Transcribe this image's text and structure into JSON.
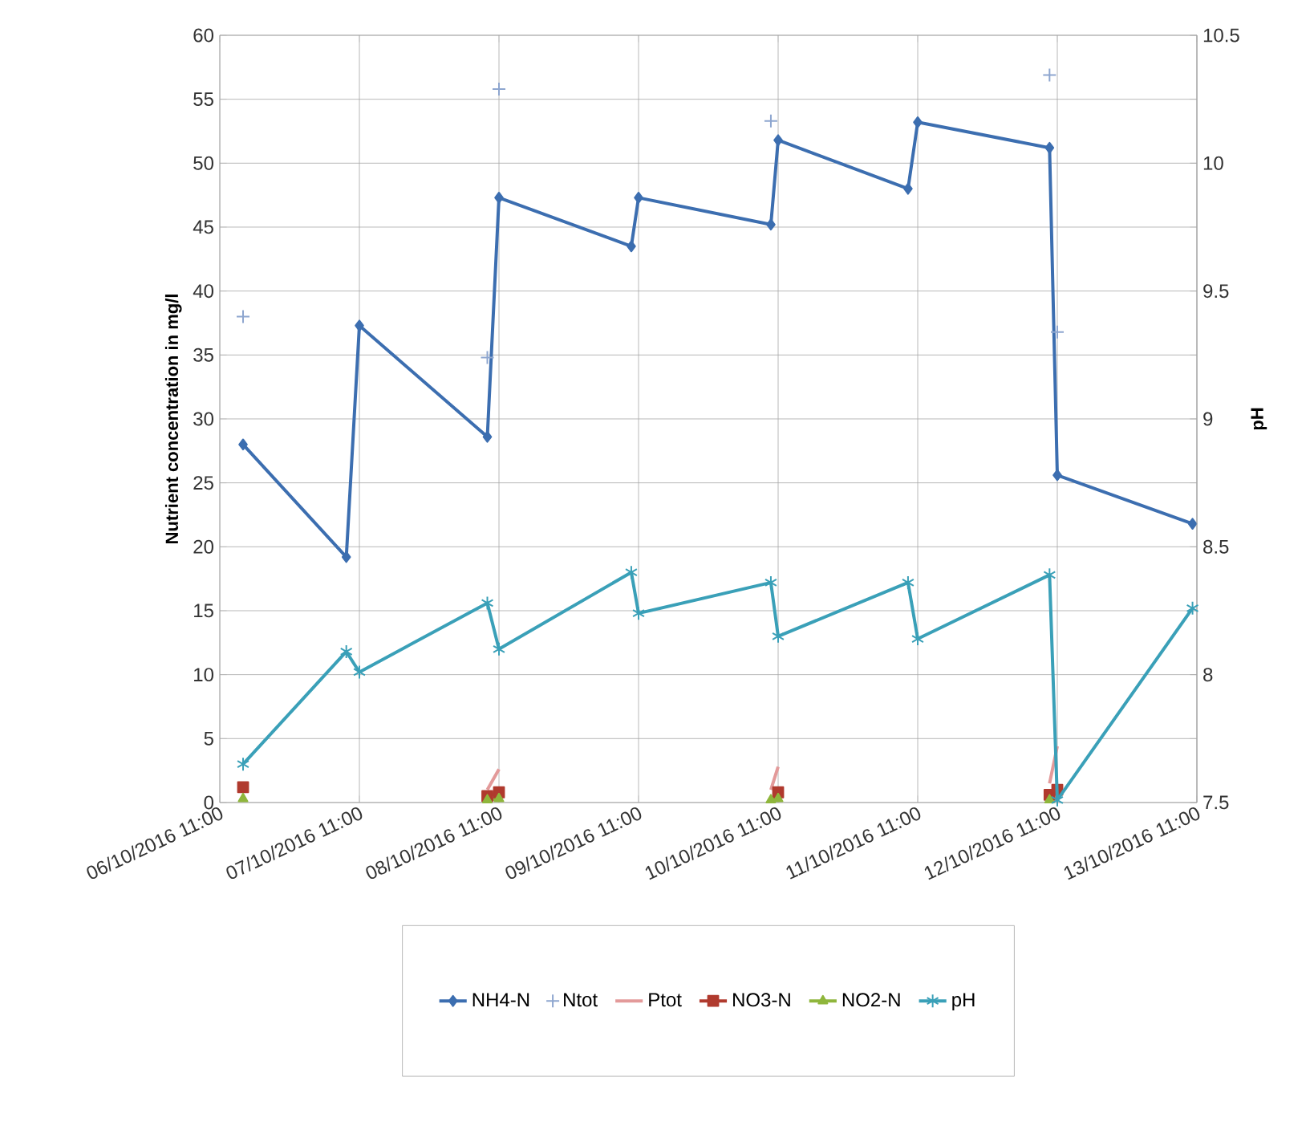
{
  "chart_data": {
    "type": "line",
    "ylabel": "Nutrient concentration in mg/l",
    "y2label": "pH",
    "x": [
      "2016-10-06T15:00",
      "2016-10-07T08:45",
      "2016-10-07T11:00",
      "2016-10-08T09:00",
      "2016-10-08T11:00",
      "2016-10-09T09:45",
      "2016-10-09T11:00",
      "2016-10-10T09:45",
      "2016-10-10T11:00",
      "2016-10-11T09:20",
      "2016-10-11T11:00",
      "2016-10-12T09:40",
      "2016-10-12T11:00",
      "2016-10-13T10:15"
    ],
    "series": [
      {
        "name": "NH4-N",
        "color": "#3c6eb0",
        "marker": "diamond",
        "values": [
          28.0,
          19.2,
          37.3,
          28.6,
          47.3,
          43.5,
          47.3,
          45.2,
          51.8,
          48.0,
          53.2,
          51.2,
          25.6,
          21.8
        ]
      },
      {
        "name": "Ntot",
        "type": "scatter",
        "color": "#8ea6cf",
        "values": [
          38.0,
          null,
          null,
          34.8,
          55.8,
          null,
          null,
          53.3,
          null,
          null,
          null,
          56.9,
          36.8,
          null
        ]
      },
      {
        "name": "Ptot",
        "color": "#e39a9a",
        "marker": "none",
        "values": [
          null,
          null,
          null,
          1.0,
          2.6,
          null,
          null,
          1.0,
          2.8,
          null,
          null,
          1.5,
          4.4,
          null
        ]
      },
      {
        "name": "NO3-N",
        "color": "#b03a2e",
        "marker": "square",
        "values": [
          1.2,
          null,
          null,
          0.5,
          0.8,
          null,
          null,
          null,
          0.8,
          null,
          null,
          0.6,
          1.0,
          null
        ]
      },
      {
        "name": "NO2-N",
        "color": "#8fb63c",
        "marker": "triangle",
        "values": [
          0.3,
          null,
          null,
          0.2,
          0.3,
          null,
          null,
          0.2,
          0.3,
          null,
          null,
          0.2,
          null,
          null
        ]
      },
      {
        "name": "pH",
        "color": "#3aa0b8",
        "marker": "cross",
        "axis": "y2",
        "values": [
          7.65,
          8.09,
          8.01,
          8.28,
          8.1,
          8.4,
          8.24,
          8.36,
          8.15,
          8.36,
          8.14,
          8.39,
          7.51,
          8.26
        ]
      }
    ],
    "xlim": [
      "2016-10-06T11:00",
      "2016-10-13T11:00"
    ],
    "xticks": [
      {
        "value": "2016-10-06T11:00",
        "label": "06/10/2016 11:00"
      },
      {
        "value": "2016-10-07T11:00",
        "label": "07/10/2016 11:00"
      },
      {
        "value": "2016-10-08T11:00",
        "label": "08/10/2016 11:00"
      },
      {
        "value": "2016-10-09T11:00",
        "label": "09/10/2016 11:00"
      },
      {
        "value": "2016-10-10T11:00",
        "label": "10/10/2016 11:00"
      },
      {
        "value": "2016-10-11T11:00",
        "label": "11/10/2016 11:00"
      },
      {
        "value": "2016-10-12T11:00",
        "label": "12/10/2016 11:00"
      },
      {
        "value": "2016-10-13T11:00",
        "label": "13/10/2016 11:00"
      }
    ],
    "ylim": [
      0,
      60
    ],
    "yticks": [
      0,
      5,
      10,
      15,
      20,
      25,
      30,
      35,
      40,
      45,
      50,
      55,
      60
    ],
    "y2lim": [
      7.5,
      10.5
    ],
    "y2ticks": [
      7.5,
      8,
      8.5,
      9,
      9.5,
      10,
      10.5
    ],
    "grid": true,
    "legend": "bottom"
  }
}
